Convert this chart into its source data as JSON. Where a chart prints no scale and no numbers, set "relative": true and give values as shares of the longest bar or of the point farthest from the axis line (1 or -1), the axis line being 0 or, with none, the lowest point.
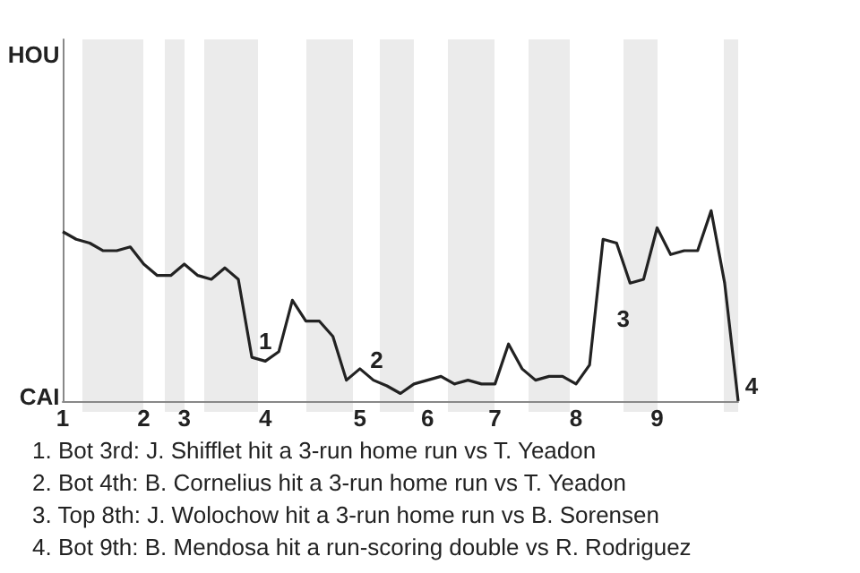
{
  "chart_data": {
    "type": "line",
    "categories": [
      "1",
      null,
      null,
      null,
      null,
      null,
      "2",
      null,
      null,
      "3",
      null,
      null,
      null,
      null,
      null,
      "4",
      null,
      null,
      null,
      null,
      null,
      null,
      "5",
      null,
      null,
      null,
      null,
      "6",
      null,
      null,
      null,
      null,
      "7",
      null,
      null,
      null,
      null,
      null,
      "8",
      null,
      null,
      null,
      null,
      null,
      "9",
      null,
      null,
      null,
      null,
      null,
      null
    ],
    "series": [
      {
        "color": "#222222",
        "values": [
          0.89,
          0.85,
          0.83,
          0.79,
          0.79,
          0.81,
          0.72,
          0.66,
          0.66,
          0.72,
          0.66,
          0.64,
          0.7,
          0.64,
          0.23,
          0.21,
          0.26,
          0.53,
          0.42,
          0.42,
          0.34,
          0.11,
          0.17,
          0.11,
          0.08,
          0.04,
          0.09,
          0.11,
          0.13,
          0.09,
          0.11,
          0.09,
          0.09,
          0.3,
          0.17,
          0.11,
          0.13,
          0.13,
          0.09,
          0.19,
          0.85,
          0.83,
          0.62,
          0.64,
          0.91,
          0.77,
          0.79,
          0.79,
          1,
          0.62,
          0
        ]
      }
    ],
    "relative": true,
    "marker": "none",
    "line_style": "solid",
    "annotations": [
      "HOU",
      "CAI",
      "1",
      "2",
      "3",
      "4",
      "1. Bot 3rd: J. Shifflet hit a 3-run home run vs T. Yeadon",
      "2. Bot 4th: B. Cornelius hit a 3-run home run vs T. Yeadon",
      "3. Top 8th: J. Wolochow hit a 3-run home run vs B. Sorensen",
      "4. Bot 9th: B. Mendosa hit a run-scoring double vs R. Rodriguez"
    ]
  }
}
